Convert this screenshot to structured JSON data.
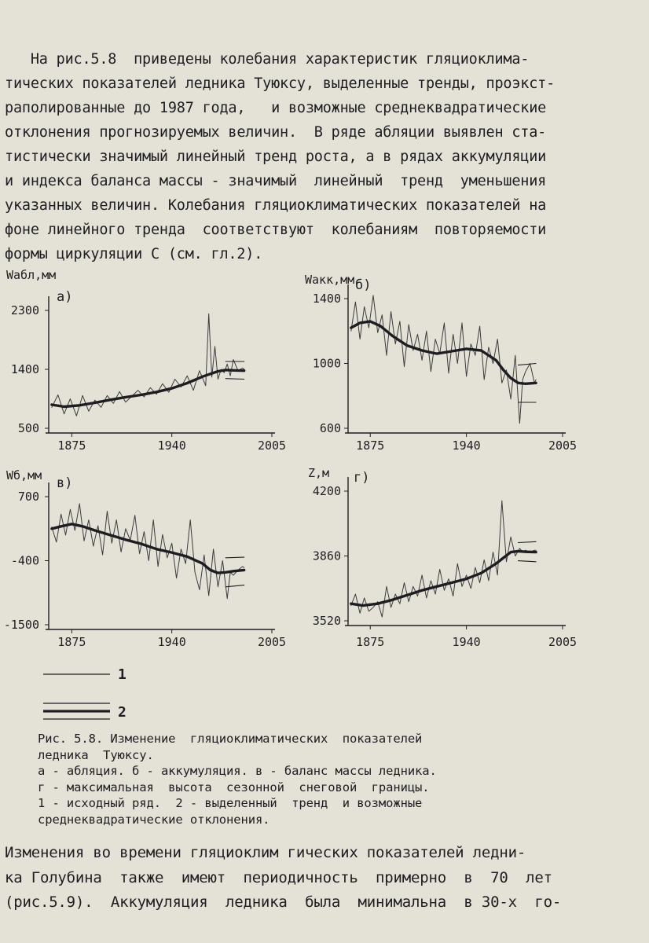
{
  "text": {
    "para1": [
      "   На рис.5.8  приведены колебания характеристик гляциоклима-",
      "тических показателей ледника Туюксу, выделенные тренды, проэкст-",
      "раполированные до 1987 года,   и возможные среднеквадратические",
      "отклонения прогнозируемых величин.  В ряде абляции выявлен ста-",
      "тистически значимый линейный тренд роста, а в рядах аккумуляции",
      "и индекса баланса массы - значимый  линейный  тренд  уменьшения",
      "указанных величин. Колебания гляциоклиматических показателей на",
      "фоне линейного тренда  соответствуют  колебаниям  повторяемости",
      "формы циркуляции С (см. гл.2)."
    ],
    "caption": [
      "Рис. 5.8. Изменение  гляциоклиматических  показателей",
      "ледника  Туюксу.",
      "а - абляция. б - аккумуляция. в - баланс массы ледника.",
      "г - максимальная  высота  сезонной  снеговой  границы.",
      "1 - исходный ряд.  2 - выделенный  тренд  и возможные",
      "среднеквадратические отклонения."
    ],
    "para2": [
      "Изменения во времени гляциоклим гических показателей ледни-",
      "ка Голубина  также  имеют  периодичность  примерно  в  70  лет",
      "(рис.5.9).  Аккумуляция  ледника  была  минимальна  в 30-х  го-"
    ]
  },
  "legend": {
    "line1_label": "1",
    "line2_label": "2"
  },
  "chart_data": [
    {
      "type": "line",
      "panel": "а)",
      "ylabel": "Wабл,мм",
      "xlim": [
        1860,
        2005
      ],
      "ylim": [
        500,
        2300
      ],
      "x_ticks": [
        1875,
        1940,
        2005
      ],
      "y_ticks": [
        2300,
        1400,
        500
      ],
      "series": [
        {
          "x": [
            1862,
            1866,
            1870,
            1874,
            1878,
            1882,
            1886,
            1890,
            1894,
            1898,
            1902,
            1906,
            1910,
            1914,
            1918,
            1922,
            1926,
            1930,
            1934,
            1938,
            1942,
            1946,
            1950,
            1954,
            1958,
            1962,
            1964,
            1966,
            1968,
            1970,
            1972,
            1974,
            1976,
            1978,
            1980,
            1983,
            1986,
            1987
          ],
          "values": [
            820,
            1010,
            720,
            950,
            690,
            1000,
            760,
            930,
            820,
            1000,
            880,
            1060,
            900,
            990,
            1080,
            980,
            1120,
            1020,
            1180,
            1050,
            1250,
            1130,
            1300,
            1080,
            1380,
            1150,
            2250,
            1280,
            1750,
            1250,
            1400,
            1350,
            1480,
            1300,
            1550,
            1380,
            1420,
            1400
          ]
        },
        {
          "x": [
            1862,
            1870,
            1880,
            1890,
            1900,
            1910,
            1920,
            1930,
            1940,
            1950,
            1960,
            1970,
            1975,
            1980,
            1987
          ],
          "values": [
            860,
            830,
            850,
            890,
            935,
            975,
            1010,
            1055,
            1110,
            1190,
            1290,
            1370,
            1390,
            1385,
            1380
          ]
        },
        {
          "x": [
            1975,
            1987
          ],
          "values": [
            1520,
            1520
          ]
        },
        {
          "x": [
            1975,
            1987
          ],
          "values": [
            1260,
            1250
          ]
        }
      ]
    },
    {
      "type": "line",
      "panel": "б)",
      "ylabel": "Wакк,мм",
      "xlim": [
        1860,
        2005
      ],
      "ylim": [
        600,
        1400
      ],
      "x_ticks": [
        1875,
        1940,
        2005
      ],
      "y_ticks": [
        1400,
        1000,
        600
      ],
      "series": [
        {
          "x": [
            1862,
            1865,
            1868,
            1871,
            1874,
            1877,
            1880,
            1883,
            1886,
            1889,
            1892,
            1895,
            1898,
            1901,
            1904,
            1907,
            1910,
            1913,
            1916,
            1919,
            1922,
            1925,
            1928,
            1931,
            1934,
            1937,
            1940,
            1943,
            1946,
            1949,
            1952,
            1955,
            1958,
            1961,
            1964,
            1967,
            1970,
            1973,
            1976,
            1978,
            1980,
            1983,
            1986,
            1987
          ],
          "values": [
            1200,
            1380,
            1150,
            1350,
            1220,
            1420,
            1190,
            1300,
            1050,
            1320,
            1120,
            1260,
            980,
            1240,
            1080,
            1180,
            1020,
            1200,
            950,
            1150,
            1060,
            1250,
            940,
            1180,
            1000,
            1250,
            920,
            1120,
            1050,
            1230,
            900,
            1100,
            1000,
            1150,
            880,
            960,
            780,
            1050,
            630,
            900,
            950,
            1000,
            880,
            900
          ]
        },
        {
          "x": [
            1862,
            1868,
            1875,
            1882,
            1890,
            1900,
            1910,
            1920,
            1930,
            1940,
            1950,
            1960,
            1965,
            1970,
            1975,
            1980,
            1987
          ],
          "values": [
            1220,
            1250,
            1260,
            1230,
            1170,
            1110,
            1080,
            1060,
            1075,
            1090,
            1080,
            1020,
            960,
            910,
            880,
            875,
            880
          ]
        },
        {
          "x": [
            1975,
            1987
          ],
          "values": [
            990,
            1000
          ]
        },
        {
          "x": [
            1975,
            1987
          ],
          "values": [
            760,
            760
          ]
        }
      ]
    },
    {
      "type": "line",
      "panel": "в)",
      "ylabel": "Wб,мм",
      "xlim": [
        1860,
        2005
      ],
      "ylim": [
        -1500,
        700
      ],
      "x_ticks": [
        1875,
        1940,
        2005
      ],
      "y_ticks": [
        700,
        -400,
        -1500
      ],
      "series": [
        {
          "x": [
            1862,
            1865,
            1868,
            1871,
            1874,
            1877,
            1880,
            1883,
            1886,
            1889,
            1892,
            1895,
            1898,
            1901,
            1904,
            1907,
            1910,
            1913,
            1916,
            1919,
            1922,
            1925,
            1928,
            1931,
            1934,
            1937,
            1940,
            1943,
            1946,
            1949,
            1952,
            1955,
            1958,
            1961,
            1964,
            1967,
            1970,
            1973,
            1976,
            1978,
            1980,
            1983,
            1986,
            1987
          ],
          "values": [
            180,
            -80,
            400,
            40,
            480,
            120,
            580,
            -60,
            300,
            -150,
            200,
            -300,
            450,
            -100,
            300,
            -250,
            150,
            -50,
            380,
            -280,
            100,
            -400,
            300,
            -500,
            50,
            -350,
            -100,
            -700,
            -200,
            -450,
            300,
            -600,
            -900,
            -300,
            -1000,
            -200,
            -850,
            -400,
            -1050,
            -600,
            -650,
            -560,
            -500,
            -520
          ]
        },
        {
          "x": [
            1862,
            1868,
            1875,
            1882,
            1890,
            1900,
            1910,
            1920,
            1930,
            1940,
            1950,
            1960,
            1965,
            1970,
            1975,
            1980,
            1987
          ],
          "values": [
            150,
            190,
            230,
            190,
            120,
            40,
            -40,
            -110,
            -200,
            -260,
            -330,
            -450,
            -560,
            -610,
            -600,
            -580,
            -560
          ]
        },
        {
          "x": [
            1975,
            1987
          ],
          "values": [
            -350,
            -340
          ]
        },
        {
          "x": [
            1975,
            1987
          ],
          "values": [
            -850,
            -820
          ]
        }
      ]
    },
    {
      "type": "line",
      "panel": "г)",
      "ylabel": "Z,м",
      "xlim": [
        1860,
        2005
      ],
      "ylim": [
        3520,
        4200
      ],
      "x_ticks": [
        1875,
        1940,
        2005
      ],
      "y_ticks": [
        4200,
        3860,
        3520
      ],
      "series": [
        {
          "x": [
            1862,
            1865,
            1868,
            1871,
            1874,
            1877,
            1880,
            1883,
            1886,
            1889,
            1892,
            1895,
            1898,
            1901,
            1904,
            1907,
            1910,
            1913,
            1916,
            1919,
            1922,
            1925,
            1928,
            1931,
            1934,
            1937,
            1940,
            1943,
            1946,
            1949,
            1952,
            1955,
            1958,
            1961,
            1964,
            1967,
            1970,
            1973,
            1976,
            1978,
            1980,
            1983,
            1986,
            1987
          ],
          "values": [
            3600,
            3660,
            3560,
            3640,
            3570,
            3590,
            3620,
            3540,
            3700,
            3590,
            3660,
            3610,
            3720,
            3620,
            3700,
            3650,
            3760,
            3640,
            3730,
            3660,
            3790,
            3680,
            3740,
            3650,
            3820,
            3700,
            3760,
            3690,
            3800,
            3720,
            3840,
            3730,
            3880,
            3760,
            4150,
            3830,
            3960,
            3860,
            3900,
            3880,
            3890,
            3880,
            3890,
            3890
          ]
        },
        {
          "x": [
            1862,
            1870,
            1880,
            1890,
            1900,
            1910,
            1920,
            1930,
            1940,
            1950,
            1960,
            1965,
            1970,
            1975,
            1980,
            1987
          ],
          "values": [
            3610,
            3600,
            3610,
            3630,
            3655,
            3680,
            3700,
            3720,
            3740,
            3770,
            3820,
            3850,
            3880,
            3885,
            3882,
            3880
          ]
        },
        {
          "x": [
            1975,
            1987
          ],
          "values": [
            3930,
            3935
          ]
        },
        {
          "x": [
            1975,
            1987
          ],
          "values": [
            3835,
            3830
          ]
        }
      ]
    }
  ]
}
